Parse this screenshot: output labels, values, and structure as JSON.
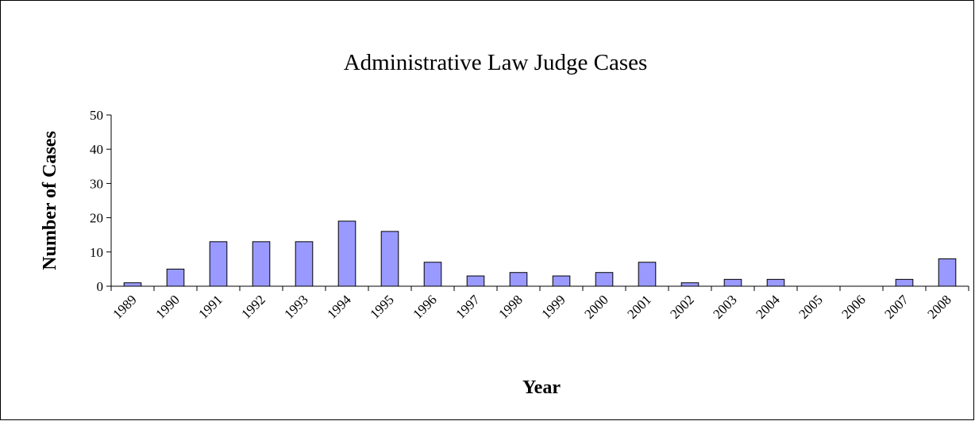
{
  "chart_data": {
    "type": "bar",
    "title": "Administrative Law Judge Cases",
    "x_label": "Year",
    "y_label": "Number of Cases",
    "categories": [
      "1989",
      "1990",
      "1991",
      "1992",
      "1993",
      "1994",
      "1995",
      "1996",
      "1997",
      "1998",
      "1999",
      "2000",
      "2001",
      "2002",
      "2003",
      "2004",
      "2005",
      "2006",
      "2007",
      "2008"
    ],
    "values": [
      1,
      5,
      13,
      13,
      13,
      19,
      16,
      7,
      3,
      4,
      3,
      4,
      7,
      1,
      2,
      2,
      0,
      0,
      2,
      8
    ],
    "color": "#9999ff",
    "ylim": [
      0,
      50
    ],
    "yticks": [
      0,
      10,
      20,
      30,
      40,
      50
    ],
    "grid": false
  }
}
